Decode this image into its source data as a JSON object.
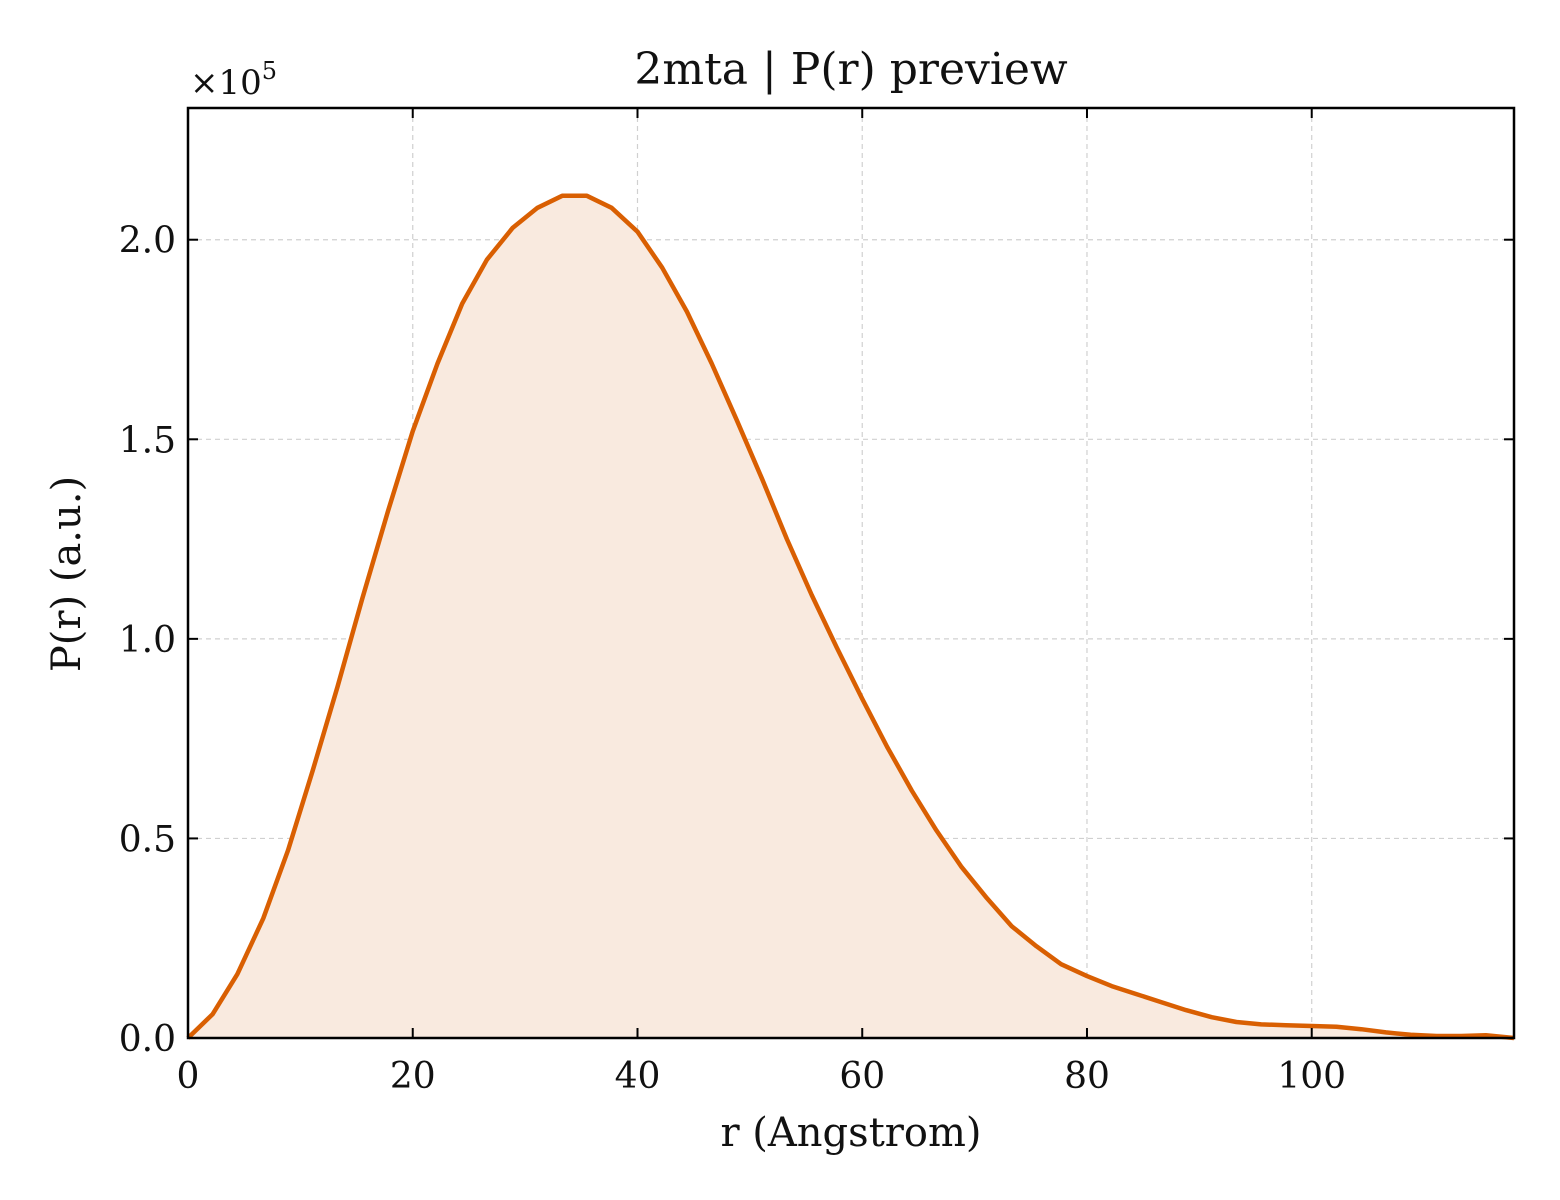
{
  "chart_data": {
    "type": "area",
    "title": "2mta | P(r) preview",
    "xlabel": "r (Angstrom)",
    "ylabel": "P(r) (a.u.)",
    "y_multiplier_label": "×10",
    "y_multiplier_exponent": "5",
    "xlim": [
      0,
      118
    ],
    "ylim": [
      0,
      2.33
    ],
    "y_unit_scale": 100000,
    "x_ticks": [
      0,
      20,
      40,
      60,
      80,
      100
    ],
    "x_tick_labels": [
      "0",
      "20",
      "40",
      "60",
      "80",
      "100"
    ],
    "y_ticks": [
      0,
      0.5,
      1.0,
      1.5,
      2.0
    ],
    "y_tick_labels": [
      "0.0",
      "0.5",
      "1.0",
      "1.5",
      "2.0"
    ],
    "grid": true,
    "colors": {
      "line": "#d95f02",
      "fill": "#f9eadf",
      "grid": "#d0d0d0",
      "axes": "#000000"
    },
    "series": [
      {
        "x": [
          0,
          2.2,
          4.4,
          6.7,
          8.9,
          11.1,
          13.3,
          15.5,
          17.8,
          20.0,
          22.2,
          24.4,
          26.6,
          28.9,
          31.1,
          33.3,
          35.5,
          37.7,
          40.0,
          42.2,
          44.4,
          46.6,
          48.8,
          51.1,
          53.3,
          55.5,
          57.7,
          60.0,
          62.2,
          64.4,
          66.6,
          68.8,
          71.1,
          73.3,
          75.5,
          77.7,
          80.0,
          82.2,
          84.4,
          86.6,
          88.8,
          91.1,
          93.3,
          95.5,
          97.7,
          100.0,
          102.2,
          104.4,
          106.6,
          108.8,
          111.1,
          113.3,
          115.5,
          118.0
        ],
        "values": [
          0.0,
          0.06,
          0.16,
          0.3,
          0.47,
          0.67,
          0.88,
          1.1,
          1.32,
          1.52,
          1.69,
          1.84,
          1.95,
          2.03,
          2.08,
          2.11,
          2.11,
          2.08,
          2.02,
          1.93,
          1.82,
          1.69,
          1.55,
          1.4,
          1.25,
          1.11,
          0.98,
          0.85,
          0.73,
          0.62,
          0.52,
          0.43,
          0.35,
          0.28,
          0.23,
          0.185,
          0.155,
          0.13,
          0.11,
          0.09,
          0.07,
          0.052,
          0.04,
          0.034,
          0.032,
          0.03,
          0.028,
          0.022,
          0.014,
          0.008,
          0.005,
          0.005,
          0.007,
          0.0
        ]
      }
    ]
  }
}
